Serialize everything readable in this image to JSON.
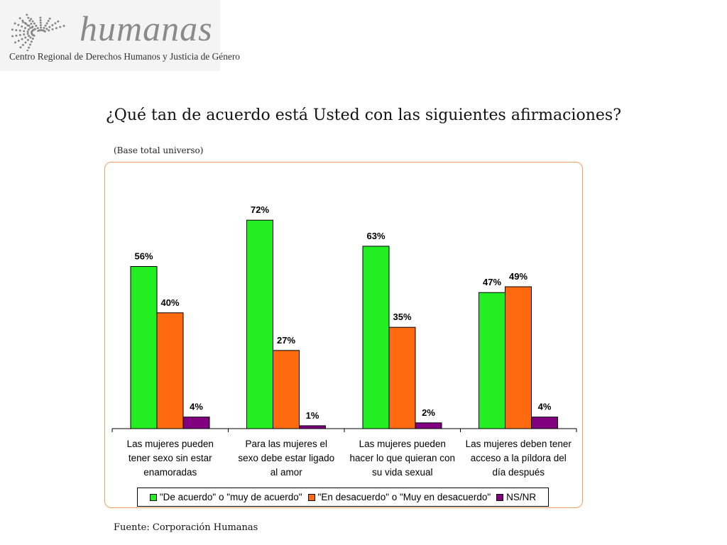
{
  "logo": {
    "word": "humanas",
    "subtitle": "Centro Regional de Derechos Humanos y Justicia de Género",
    "icon": "dotted-fan-logo-icon"
  },
  "page_title": "¿Qué tan de acuerdo está Usted con las siguientes afirmaciones?",
  "chart_data": {
    "type": "bar",
    "title": "¿Qué tan de acuerdo está Usted con las siguientes afirmaciones?",
    "subtitle": "(Base total universo)",
    "categories": [
      [
        "Las mujeres pueden",
        "tener sexo sin estar",
        "enamoradas"
      ],
      [
        "Para las mujeres el",
        "sexo debe estar ligado",
        "al amor"
      ],
      [
        "Las mujeres pueden",
        "hacer lo que quieran con",
        "su vida sexual"
      ],
      [
        "Las mujeres deben tener",
        "acceso a la píldora del",
        "día después"
      ]
    ],
    "series": [
      {
        "name": "\"De acuerdo\" o \"muy de acuerdo\"",
        "color": "#22ee22",
        "values": [
          56,
          72,
          63,
          47
        ],
        "labels": [
          "56%",
          "72%",
          "63%",
          "47%"
        ]
      },
      {
        "name": "\"En desacuerdo\" o \"Muy en desacuerdo\"",
        "color": "#ff6a10",
        "values": [
          40,
          27,
          35,
          49
        ],
        "labels": [
          "40%",
          "27%",
          "35%",
          "49%"
        ]
      },
      {
        "name": "NS/NR",
        "color": "#800080",
        "values": [
          4,
          1,
          2,
          4
        ],
        "labels": [
          "4%",
          "1%",
          "2%",
          "4%"
        ]
      }
    ],
    "ylim": [
      0,
      80
    ],
    "value_unit": "%",
    "grid": false,
    "legend_position": "bottom",
    "frame_color": "#f2a064"
  },
  "source": "Fuente: Corporación Humanas"
}
